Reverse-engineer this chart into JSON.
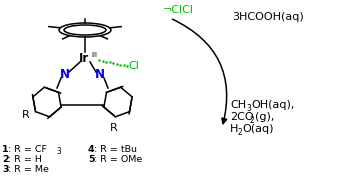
{
  "bg_color": "#ffffff",
  "cl_color": "#00bb00",
  "n_color": "#0000ee",
  "reactant": "3HCOOH(aq)",
  "cl_counter": "¬Cl",
  "labels_left": [
    "1: R = CF",
    "2: R = H",
    "3: R = Me"
  ],
  "labels_right": [
    "4: R = tBu",
    "5: R = OMe"
  ],
  "fs_main": 8.0,
  "fs_label": 6.8,
  "fs_sub": 5.5
}
